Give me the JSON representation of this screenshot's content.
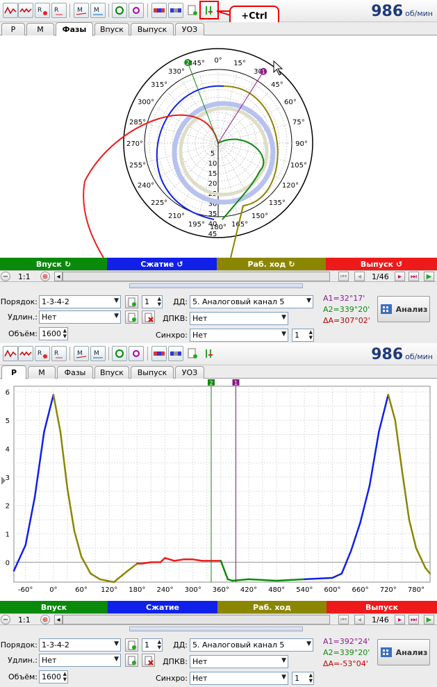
{
  "colors": {
    "intake": "#0a8a0a",
    "compression": "#1020e8",
    "power": "#8b8600",
    "exhaust": "#ee1a1a",
    "cursor1": "#8b1a8b",
    "cursor2": "#118811"
  },
  "rpm": {
    "value": "986",
    "unit": "об/мин"
  },
  "toolbar_icons": [
    "oscillogram-icon",
    "amplitude-icon",
    "rx-icon",
    "rx-small-icon",
    "m-icon",
    "m-line-icon",
    "probe-icon",
    "sensor-icon",
    "strip-icon",
    "strip-b-icon",
    "doc-check-icon",
    "cursor-icon"
  ],
  "callout": "+Ctrl",
  "tabs": [
    "P",
    "M",
    "Фазы",
    "Впуск",
    "Выпуск",
    "УОЗ"
  ],
  "polar": {
    "angle_labels": [
      "0°",
      "15°",
      "30°",
      "45°",
      "60°",
      "75°",
      "90°",
      "105°",
      "120°",
      "135°",
      "150°",
      "165°",
      "180°",
      "195°",
      "210°",
      "225°",
      "240°",
      "255°",
      "270°",
      "285°",
      "300°",
      "315°",
      "330°",
      "345°"
    ],
    "radial_labels": [
      "5",
      "10",
      "15",
      "20",
      "25",
      "30",
      "35",
      "40",
      "45"
    ],
    "cursor_labels": [
      "1",
      "2"
    ]
  },
  "strokes": [
    {
      "label": "Впуск"
    },
    {
      "label": "Сжатие"
    },
    {
      "label": "Раб. ход"
    },
    {
      "label": "Выпуск"
    }
  ],
  "nav": {
    "zoom": "1:1",
    "page": "1/46"
  },
  "panel1": {
    "order_label": "Порядок:",
    "order_value": "1-3-4-2",
    "order_count": "1",
    "ext_label": "Удлин.:",
    "ext_value": "Нет",
    "vol_label": "Объём:",
    "vol_value": "1600",
    "dd_label": "ДД:",
    "dd_value": "5. Аналоговый канал 5",
    "dpkv_label": "ДПКВ:",
    "dpkv_value": "Нет",
    "sync_label": "Синхро:",
    "sync_value": "Нет",
    "sync_count": "1",
    "a1": "A1=32°17'",
    "a2": "A2=339°20'",
    "da": "ΔA=307°02'",
    "analyze": "Анализ"
  },
  "panel2": {
    "order_label": "Порядок:",
    "order_value": "1-3-4-2",
    "order_count": "1",
    "ext_label": "Удлин.:",
    "ext_value": "Нет",
    "vol_label": "Объём:",
    "vol_value": "1600",
    "dd_label": "ДД:",
    "dd_value": "5. Аналоговый канал 5",
    "dpkv_label": "ДПКВ:",
    "dpkv_value": "Нет",
    "sync_label": "Синхро:",
    "sync_value": "Нет",
    "sync_count": "1",
    "a1": "A1=392°24'",
    "a2": "A2=339°20'",
    "da": "ΔA=-53°04'",
    "analyze": "Анализ"
  },
  "chart_data": {
    "type": "line",
    "x_ticks": [
      "-60°",
      "0°",
      "60°",
      "120°",
      "180°",
      "240°",
      "300°",
      "360°",
      "420°",
      "480°",
      "540°",
      "600°",
      "660°",
      "720°",
      "780°"
    ],
    "y_ticks": [
      "0",
      "1",
      "2",
      "3",
      "4",
      "5",
      "6"
    ],
    "xlim": [
      -85,
      810
    ],
    "ylim": [
      -0.7,
      6.2
    ],
    "cursor1_x": 392.4,
    "cursor2_x": 339.33,
    "points": [
      [
        -85,
        -0.3
      ],
      [
        -60,
        0.6
      ],
      [
        -40,
        2.3
      ],
      [
        -20,
        4.6
      ],
      [
        0,
        5.9
      ],
      [
        15,
        4.6
      ],
      [
        30,
        2.6
      ],
      [
        45,
        1.1
      ],
      [
        60,
        0.2
      ],
      [
        80,
        -0.4
      ],
      [
        100,
        -0.6
      ],
      [
        130,
        -0.7
      ],
      [
        160,
        -0.3
      ],
      [
        180,
        -0.05
      ],
      [
        190,
        -0.05
      ],
      [
        210,
        0.0
      ],
      [
        230,
        0.0
      ],
      [
        240,
        0.15
      ],
      [
        260,
        0.05
      ],
      [
        280,
        0.1
      ],
      [
        300,
        0.1
      ],
      [
        320,
        0.05
      ],
      [
        340,
        0.05
      ],
      [
        360,
        0.05
      ],
      [
        375,
        -0.6
      ],
      [
        385,
        -0.65
      ],
      [
        420,
        -0.6
      ],
      [
        480,
        -0.65
      ],
      [
        540,
        -0.6
      ],
      [
        600,
        -0.55
      ],
      [
        620,
        -0.4
      ],
      [
        640,
        0.4
      ],
      [
        660,
        1.4
      ],
      [
        680,
        2.7
      ],
      [
        700,
        4.6
      ],
      [
        720,
        5.9
      ],
      [
        735,
        5.0
      ],
      [
        750,
        3.2
      ],
      [
        765,
        1.5
      ],
      [
        780,
        0.5
      ],
      [
        800,
        -0.2
      ],
      [
        810,
        -0.4
      ]
    ]
  }
}
